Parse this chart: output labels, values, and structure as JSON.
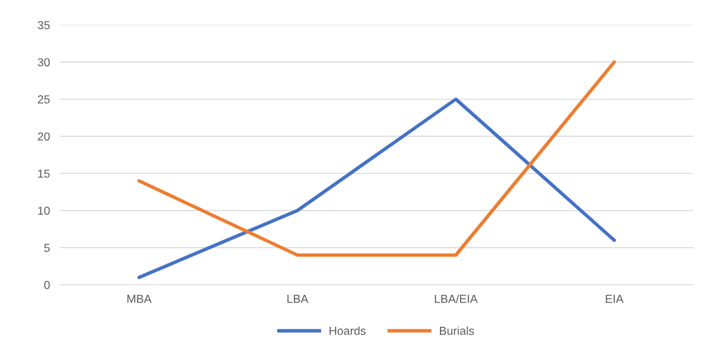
{
  "chart_data": {
    "type": "line",
    "categories": [
      "MBA",
      "LBA",
      "LBA/EIA",
      "EIA"
    ],
    "series": [
      {
        "name": "Hoards",
        "color": "#4472c4",
        "values": [
          1,
          10,
          25,
          6
        ]
      },
      {
        "name": "Burials",
        "color": "#ed7d31",
        "values": [
          14,
          4,
          4,
          30
        ]
      }
    ],
    "ylim": [
      0,
      35
    ],
    "yticks": [
      0,
      5,
      10,
      15,
      20,
      25,
      30,
      35
    ],
    "grid": "y",
    "legend": "bottom",
    "marker": "none",
    "line_style": "solid"
  }
}
